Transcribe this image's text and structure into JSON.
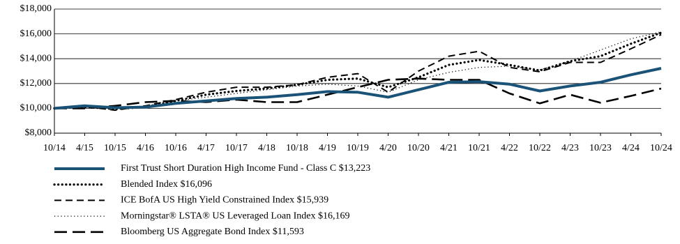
{
  "chart_data": {
    "type": "line",
    "categories": [
      "10/14",
      "4/15",
      "10/15",
      "4/16",
      "10/16",
      "4/17",
      "10/17",
      "4/18",
      "10/18",
      "4/19",
      "10/19",
      "4/20",
      "10/20",
      "4/21",
      "10/21",
      "4/22",
      "10/22",
      "4/23",
      "10/23",
      "4/24",
      "10/24"
    ],
    "series": [
      {
        "name": "First Trust Short Duration High Income Fund - Class C $13,223",
        "color": "#1b5378",
        "style": "solid",
        "values": [
          10000,
          10200,
          10050,
          10100,
          10400,
          10600,
          10800,
          10900,
          11100,
          11350,
          11300,
          10900,
          11500,
          12100,
          12150,
          11950,
          11400,
          11800,
          12100,
          12700,
          13223
        ]
      },
      {
        "name": "Blended Index $16,096",
        "color": "#000000",
        "style": "dotted",
        "values": [
          10000,
          10100,
          9950,
          10100,
          10600,
          11100,
          11400,
          11600,
          11900,
          12300,
          12400,
          11700,
          12500,
          13500,
          13900,
          13500,
          13050,
          13800,
          14200,
          15200,
          16096
        ]
      },
      {
        "name": "ICE BofA US High Yield Constrained Index $15,939",
        "color": "#000000",
        "style": "dashed",
        "values": [
          10000,
          10150,
          9850,
          10200,
          10700,
          11300,
          11700,
          11700,
          11900,
          12500,
          12800,
          11300,
          13000,
          14200,
          14600,
          13300,
          12950,
          13700,
          13700,
          14800,
          15939
        ]
      },
      {
        "name": "Morningstar® LSTA® US Leveraged Loan Index $16,169",
        "color": "#000000",
        "style": "fine-dotted",
        "values": [
          10000,
          10100,
          10000,
          10200,
          10600,
          10900,
          11200,
          11500,
          11800,
          11950,
          11800,
          11300,
          12300,
          12900,
          13300,
          13400,
          13100,
          13800,
          14700,
          15600,
          16169
        ]
      },
      {
        "name": "Bloomberg US Aggregate Bond Index $11,593",
        "color": "#000000",
        "style": "long-dashed",
        "values": [
          10000,
          10000,
          10200,
          10500,
          10600,
          10500,
          10700,
          10500,
          10500,
          11100,
          11700,
          12300,
          12400,
          12300,
          12300,
          11200,
          10400,
          11100,
          10450,
          11000,
          11593
        ]
      }
    ],
    "ylim": [
      8000,
      18000
    ],
    "yticks": [
      {
        "value": 8000,
        "label": "$8,000"
      },
      {
        "value": 10000,
        "label": "$10,000"
      },
      {
        "value": 12000,
        "label": "$12,000"
      },
      {
        "value": 14000,
        "label": "$14,000"
      },
      {
        "value": 16000,
        "label": "$16,000"
      },
      {
        "value": 18000,
        "label": "$18,000"
      }
    ],
    "grid": true,
    "legend": "bottom-left"
  }
}
